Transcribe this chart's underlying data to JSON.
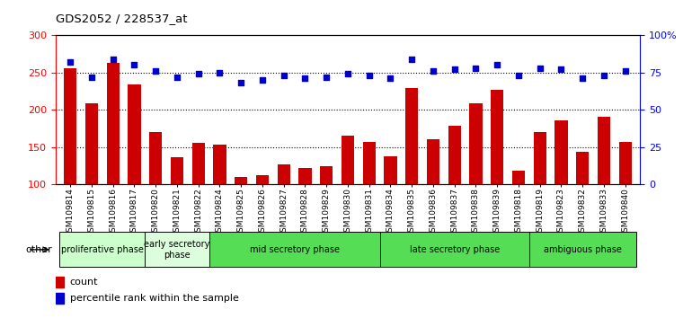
{
  "title": "GDS2052 / 228537_at",
  "samples": [
    "GSM109814",
    "GSM109815",
    "GSM109816",
    "GSM109817",
    "GSM109820",
    "GSM109821",
    "GSM109822",
    "GSM109824",
    "GSM109825",
    "GSM109826",
    "GSM109827",
    "GSM109828",
    "GSM109829",
    "GSM109830",
    "GSM109831",
    "GSM109834",
    "GSM109835",
    "GSM109836",
    "GSM109837",
    "GSM109838",
    "GSM109839",
    "GSM109818",
    "GSM109819",
    "GSM109823",
    "GSM109832",
    "GSM109833",
    "GSM109840"
  ],
  "counts": [
    255,
    209,
    263,
    234,
    170,
    136,
    156,
    153,
    110,
    113,
    127,
    122,
    124,
    165,
    157,
    138,
    229,
    160,
    179,
    209,
    227,
    119,
    170,
    186,
    144,
    190,
    157
  ],
  "percentiles_pct": [
    82,
    72,
    84,
    80,
    76,
    72,
    74,
    75,
    68,
    70,
    73,
    71,
    72,
    74,
    73,
    71,
    84,
    76,
    77,
    78,
    80,
    73,
    78,
    77,
    71,
    73,
    76
  ],
  "bar_color": "#cc0000",
  "dot_color": "#0000cc",
  "ylim_left": [
    100,
    300
  ],
  "ylim_right": [
    0,
    100
  ],
  "yticks_left": [
    100,
    150,
    200,
    250,
    300
  ],
  "yticks_right": [
    0,
    25,
    50,
    75,
    100
  ],
  "ytick_labels_right": [
    "0",
    "25",
    "50",
    "75",
    "100%"
  ],
  "dotted_line_vals": [
    150,
    200,
    250
  ],
  "phases": [
    {
      "label": "proliferative phase",
      "start": 0,
      "end": 4,
      "color": "#ccffcc"
    },
    {
      "label": "early secretory\nphase",
      "start": 4,
      "end": 7,
      "color": "#ddfedd"
    },
    {
      "label": "mid secretory phase",
      "start": 7,
      "end": 15,
      "color": "#55dd55"
    },
    {
      "label": "late secretory phase",
      "start": 15,
      "end": 22,
      "color": "#55dd55"
    },
    {
      "label": "ambiguous phase",
      "start": 22,
      "end": 27,
      "color": "#55dd55"
    }
  ],
  "other_label": "other",
  "legend_items": [
    {
      "label": "count",
      "color": "#cc0000"
    },
    {
      "label": "percentile rank within the sample",
      "color": "#0000cc"
    }
  ]
}
